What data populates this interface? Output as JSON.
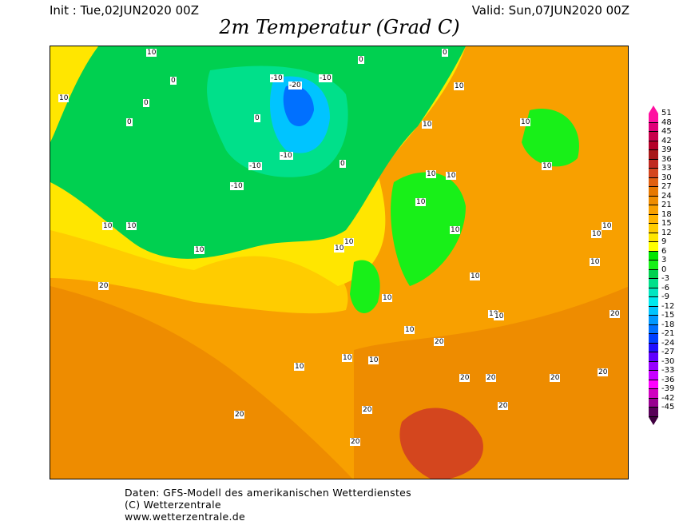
{
  "header": {
    "init": "Init : Tue,02JUN2020 00Z",
    "valid": "Valid: Sun,07JUN2020 00Z",
    "title": "2m Temperatur (Grad C)"
  },
  "legend": {
    "labels": [
      "51",
      "48",
      "45",
      "42",
      "39",
      "36",
      "33",
      "30",
      "27",
      "24",
      "21",
      "18",
      "15",
      "12",
      "9",
      "6",
      "3",
      "0",
      "-3",
      "-6",
      "-9",
      "-12",
      "-15",
      "-18",
      "-21",
      "-24",
      "-27",
      "-30",
      "-33",
      "-36",
      "-39",
      "-42",
      "-45"
    ],
    "colors": [
      "#ff10a0",
      "#e00078",
      "#c8004a",
      "#b40028",
      "#a81818",
      "#c02a20",
      "#d4461e",
      "#e06010",
      "#e67800",
      "#ee8c00",
      "#f8a000",
      "#ffb400",
      "#ffcc00",
      "#ffe600",
      "#ffff00",
      "#00e600",
      "#18f018",
      "#00d050",
      "#00e08a",
      "#00e6c0",
      "#00e8ee",
      "#00c4ff",
      "#0098ff",
      "#0070ff",
      "#0040ff",
      "#2010ff",
      "#6000ff",
      "#9800ff",
      "#c800ff",
      "#ff00ff",
      "#d000c0",
      "#980090",
      "#580058"
    ],
    "top_color": "#ff10a0",
    "bottom_color": "#400040"
  },
  "map": {
    "contour_labels": [
      "10",
      "10",
      "0",
      "0",
      "0",
      "0",
      "-10",
      "-20",
      "-10",
      "0",
      "0",
      "0",
      "10",
      "10",
      "10",
      "10",
      "-10",
      "-10",
      "-10",
      "10",
      "10",
      "10",
      "10",
      "10",
      "10",
      "10",
      "10",
      "20",
      "20",
      "20",
      "10",
      "10",
      "10",
      "10",
      "20",
      "20",
      "20",
      "20",
      "20",
      "20",
      "10",
      "10",
      "10",
      "10",
      "10",
      "10",
      "10",
      "10",
      "20",
      "20"
    ]
  },
  "footer": {
    "line1": "Daten: GFS-Modell des amerikanischen Wetterdienstes",
    "line2": "(C) Wetterzentrale",
    "line3": "www.wetterzentrale.de"
  }
}
